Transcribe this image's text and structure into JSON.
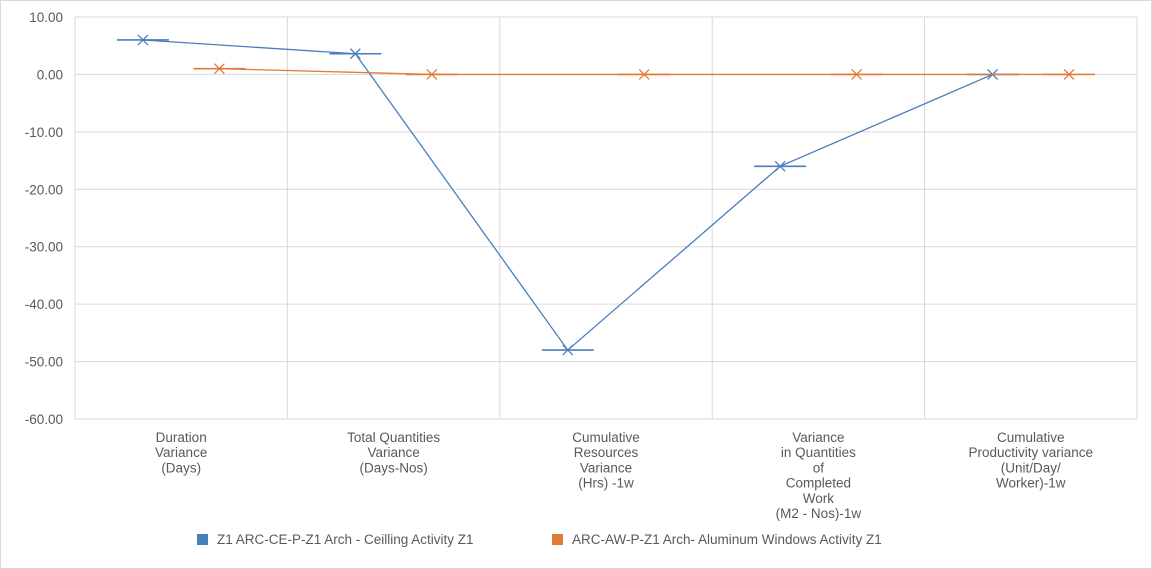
{
  "chart_data": {
    "type": "line",
    "title": "",
    "xlabel": "",
    "ylabel": "",
    "ylim": [
      -60,
      10
    ],
    "yticks": [
      10,
      0,
      -10,
      -20,
      -30,
      -40,
      -50,
      -60
    ],
    "ytick_labels": [
      "10.00",
      "0.00",
      "-10.00",
      "-20.00",
      "-30.00",
      "-40.00",
      "-50.00",
      "-60.00"
    ],
    "grid": true,
    "legend_position": "bottom",
    "categories": [
      [
        "Duration",
        "Variance",
        "(Days)"
      ],
      [
        "Total Quantities",
        "Variance",
        "(Days-Nos)"
      ],
      [
        "Cumulative",
        "Resources",
        "Variance",
        "(Hrs) -1w"
      ],
      [
        "Variance",
        "in Quantities",
        "of",
        "Completed",
        "Work",
        "(M2 - Nos)-1w"
      ],
      [
        "Cumulative",
        "Productivity variance",
        "(Unit/Day/",
        "Worker)-1w"
      ]
    ],
    "series": [
      {
        "name": "Z1 ARC-CE-P-Z1  Arch - Ceilling Activity Z1",
        "color": "#4a7ebb",
        "values": [
          6.0,
          3.6,
          -48.0,
          -16.0,
          0.0
        ]
      },
      {
        "name": "ARC-AW-P-Z1 Arch- Aluminum Windows Activity Z1",
        "color": "#e07b39",
        "values": [
          1.0,
          0.0,
          0.0,
          0.0,
          0.0
        ]
      }
    ]
  }
}
